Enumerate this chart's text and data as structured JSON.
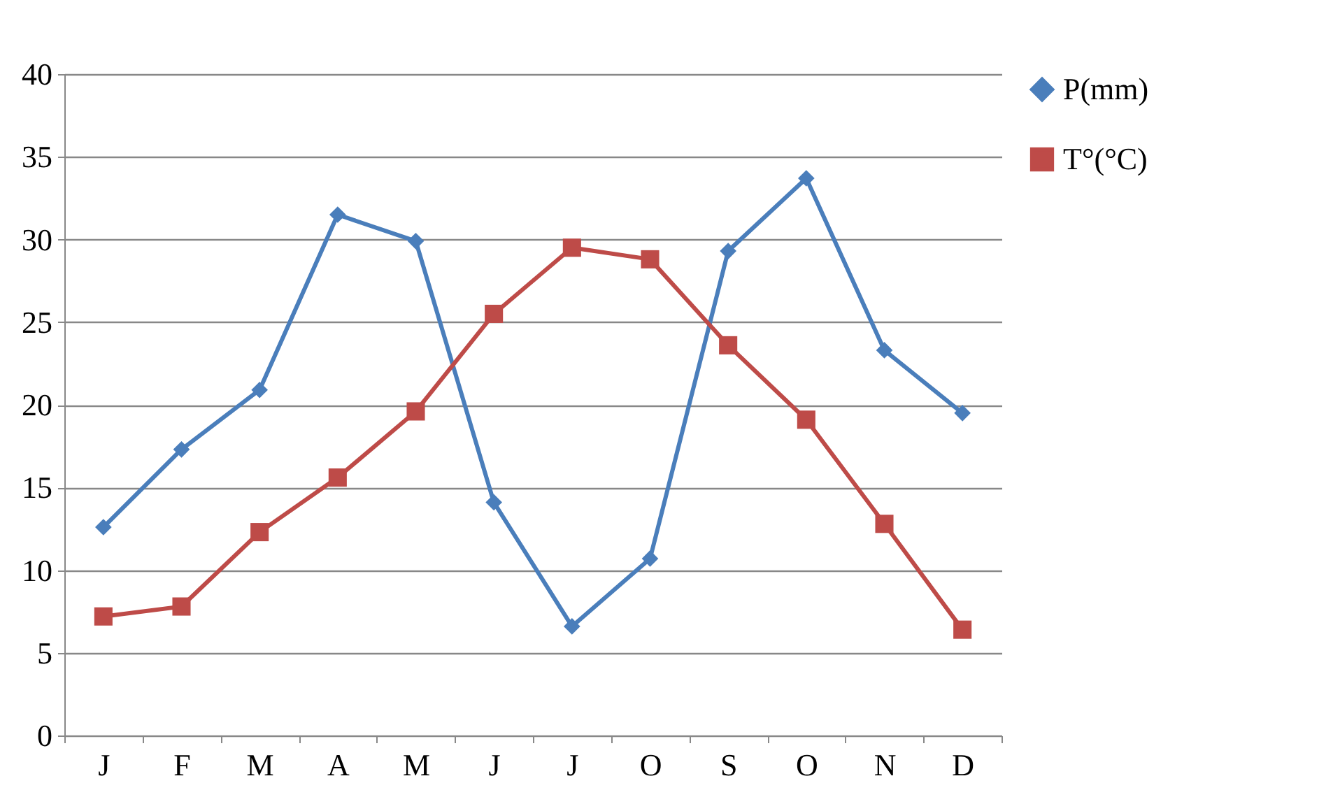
{
  "chart_data": {
    "type": "line",
    "categories": [
      "J",
      "F",
      "M",
      "A",
      "M",
      "J",
      "J",
      "O",
      "S",
      "O",
      "N",
      "D"
    ],
    "series": [
      {
        "name": "P(mm)",
        "color": "#4a7ebb",
        "marker": "diamond",
        "values": [
          12.6,
          17.3,
          20.9,
          31.5,
          29.9,
          14.1,
          6.6,
          10.7,
          29.3,
          33.7,
          23.3,
          19.5
        ]
      },
      {
        "name": "T°(°C)",
        "color": "#be4b48",
        "marker": "square",
        "values": [
          7.2,
          7.8,
          12.3,
          15.6,
          19.6,
          25.5,
          29.5,
          28.8,
          23.6,
          19.1,
          12.8,
          6.4
        ]
      }
    ],
    "ylim": [
      0,
      40
    ],
    "yticks": [
      0,
      5,
      10,
      15,
      20,
      25,
      30,
      35,
      40
    ],
    "grid": "y",
    "legend": "right",
    "line_style": "solid"
  }
}
